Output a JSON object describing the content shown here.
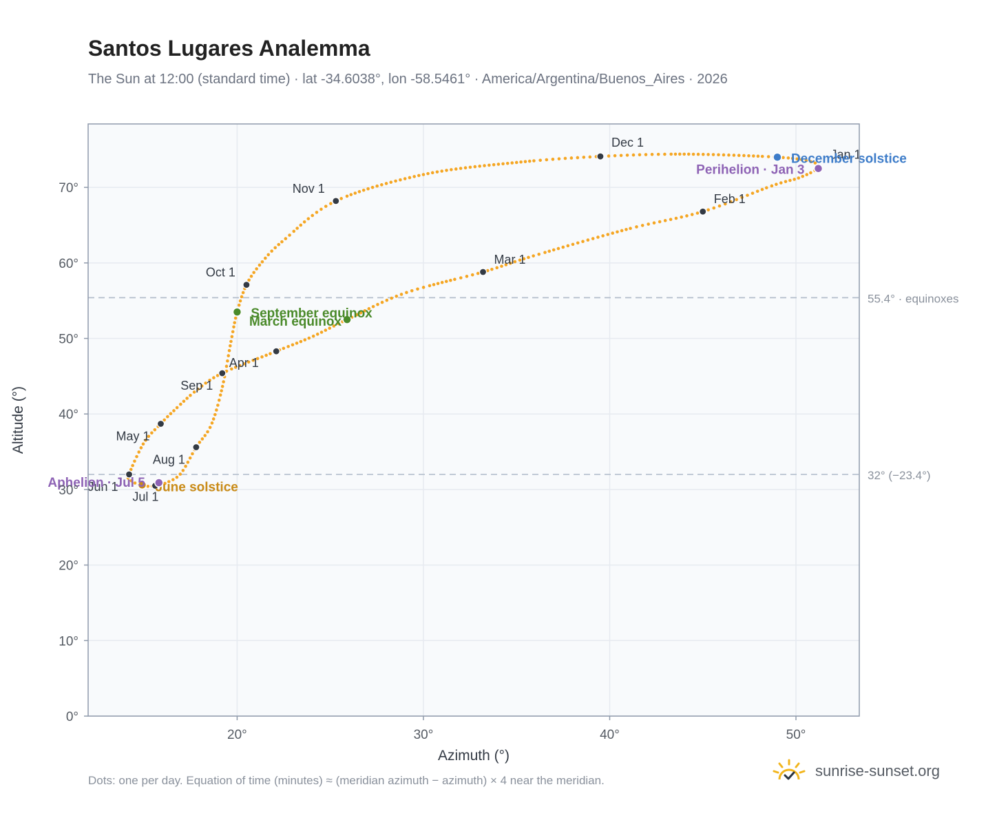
{
  "title": "Santos Lugares Analemma",
  "subtitle": "The Sun at 12:00 (standard time) · lat -34.6038°, lon -58.5461° · America/Argentina/Buenos_Aires · 2026",
  "footer_note": "Dots: one per day. Equation of time (minutes) ≈ (meridian azimuth − azimuth) × 4 near the meridian.",
  "brand": {
    "text": "sunrise-sunset.org",
    "icon": "sun-check-icon"
  },
  "colors": {
    "curve": "#f5a623",
    "month_marker": "#333a44",
    "december_solstice": "#3d7cc9",
    "june_solstice": "#c98b17",
    "equinox": "#4a8a2a",
    "apsis": "#8e63b5",
    "reference_line": "#b8c2cf",
    "plot_bg": "#f8fafc",
    "grid": "#e6eaf0",
    "frame": "#8f9aab"
  },
  "chart_data": {
    "type": "scatter",
    "xlabel": "Azimuth (°)",
    "ylabel": "Altitude (°)",
    "xlim": [
      12,
      53.4
    ],
    "ylim": [
      0,
      78.4
    ],
    "x_ticks": [
      20,
      30,
      40,
      50
    ],
    "x_tick_labels": [
      "20°",
      "30°",
      "40°",
      "50°"
    ],
    "y_ticks": [
      0,
      10,
      20,
      30,
      40,
      50,
      60,
      70
    ],
    "y_tick_labels": [
      "0°",
      "10°",
      "20°",
      "30°",
      "40°",
      "50°",
      "60°",
      "70°"
    ],
    "grid": true,
    "series": [
      {
        "marker": "small-dot",
        "points": [
          [
            51.2,
            72.6
          ],
          [
            50.2,
            71.3
          ],
          [
            48.7,
            70.2
          ],
          [
            45.0,
            66.8
          ],
          [
            41.0,
            64.5
          ],
          [
            36.0,
            61.0
          ],
          [
            33.2,
            58.8
          ],
          [
            29.0,
            56.0
          ],
          [
            25.9,
            52.5
          ],
          [
            24.0,
            50.2
          ],
          [
            22.1,
            48.3
          ],
          [
            19.2,
            45.4
          ],
          [
            17.8,
            43.1
          ],
          [
            16.5,
            40.2
          ],
          [
            15.9,
            38.7
          ],
          [
            15.0,
            36.2
          ],
          [
            14.2,
            32.0
          ],
          [
            14.3,
            31.2
          ],
          [
            14.9,
            30.5
          ],
          [
            15.6,
            30.5
          ],
          [
            16.3,
            31.0
          ],
          [
            17.0,
            32.2
          ],
          [
            17.8,
            35.6
          ],
          [
            18.6,
            38.5
          ],
          [
            19.2,
            43.5
          ],
          [
            19.7,
            50.0
          ],
          [
            20.0,
            53.5
          ],
          [
            20.5,
            57.1
          ],
          [
            21.3,
            60.0
          ],
          [
            22.5,
            63.0
          ],
          [
            25.3,
            68.2
          ],
          [
            30.0,
            71.7
          ],
          [
            35.0,
            73.3
          ],
          [
            39.5,
            74.1
          ],
          [
            44.0,
            74.4
          ],
          [
            49.0,
            74.0
          ],
          [
            50.8,
            73.4
          ],
          [
            51.2,
            72.6
          ]
        ]
      }
    ],
    "month_markers": [
      {
        "label": "Jan 1",
        "x": 51.2,
        "y": 72.5
      },
      {
        "label": "Feb 1",
        "x": 45.0,
        "y": 66.8
      },
      {
        "label": "Mar 1",
        "x": 33.2,
        "y": 58.8
      },
      {
        "label": "Apr 1",
        "x": 19.2,
        "y": 45.4
      },
      {
        "label": "May 1",
        "x": 15.9,
        "y": 38.7
      },
      {
        "label": "Jun 1",
        "x": 14.2,
        "y": 32.0
      },
      {
        "label": "Jul 1",
        "x": 15.6,
        "y": 30.5
      },
      {
        "label": "Aug 1",
        "x": 17.8,
        "y": 35.6
      },
      {
        "label": "Sep 1",
        "x": 22.1,
        "y": 48.3
      },
      {
        "label": "Oct 1",
        "x": 20.5,
        "y": 57.1
      },
      {
        "label": "Nov 1",
        "x": 25.3,
        "y": 68.2
      },
      {
        "label": "Dec 1",
        "x": 39.5,
        "y": 74.1
      }
    ],
    "events": [
      {
        "label": "December solstice",
        "x": 49.0,
        "y": 74.0,
        "color": "#3d7cc9"
      },
      {
        "label": "June solstice",
        "x": 14.9,
        "y": 30.6,
        "color": "#c98b17"
      },
      {
        "label": "March equinox",
        "x": 25.9,
        "y": 52.5,
        "color": "#4a8a2a"
      },
      {
        "label": "September equinox",
        "x": 20.0,
        "y": 53.5,
        "color": "#4a8a2a"
      },
      {
        "label": "Perihelion · Jan 3",
        "x": 51.2,
        "y": 72.5,
        "color": "#8e63b5"
      },
      {
        "label": "Aphelion · Jul 5",
        "x": 15.8,
        "y": 30.9,
        "color": "#8e63b5"
      }
    ],
    "reference_lines": [
      {
        "y": 55.4,
        "label": "55.4° · equinoxes"
      },
      {
        "y": 32.0,
        "label": "32° (−23.4°)"
      }
    ]
  }
}
